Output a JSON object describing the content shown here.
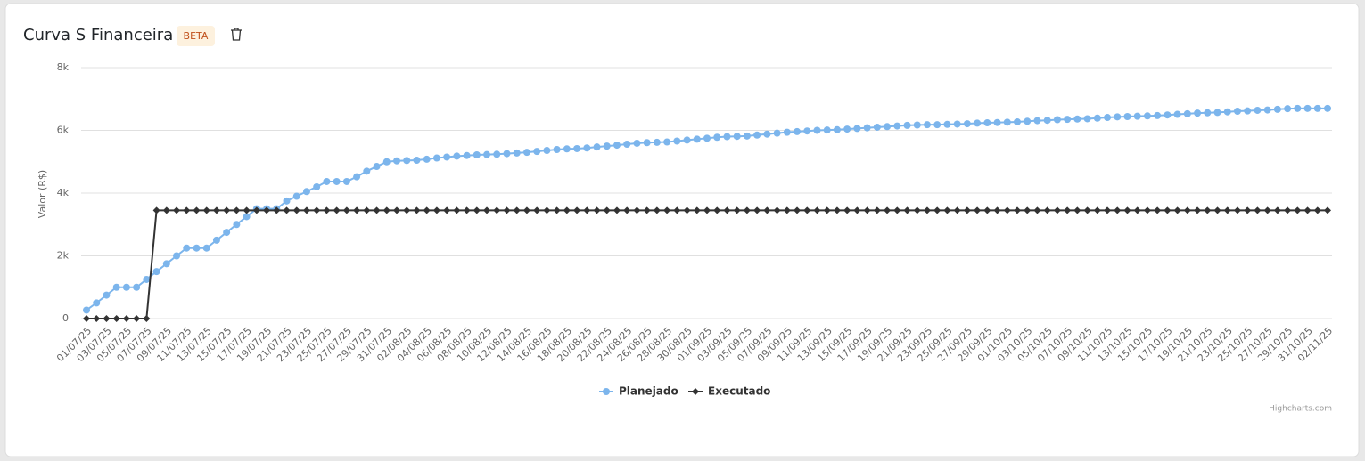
{
  "chart_data": {
    "type": "line",
    "title": "Curva S Financeira",
    "badge": "BETA",
    "credits": "Highcharts.com",
    "y_axis_label": "Valor (R$)",
    "ylim": [
      0,
      8000
    ],
    "yticks": [
      0,
      {
        "value": 2000,
        "label": "2k"
      },
      {
        "value": 4000,
        "label": "4k"
      },
      {
        "value": 6000,
        "label": "6k"
      },
      {
        "value": 8000,
        "label": "8k"
      }
    ],
    "grid": true,
    "legend": "bottom",
    "categories": [
      "01/07/25",
      null,
      "03/07/25",
      null,
      "05/07/25",
      null,
      "07/07/25",
      null,
      "09/07/25",
      null,
      "11/07/25",
      null,
      "13/07/25",
      null,
      "15/07/25",
      null,
      "17/07/25",
      null,
      "19/07/25",
      null,
      "21/07/25",
      null,
      "23/07/25",
      null,
      "25/07/25",
      null,
      "27/07/25",
      null,
      "29/07/25",
      null,
      "31/07/25",
      null,
      "02/08/25",
      null,
      "04/08/25",
      null,
      "06/08/25",
      null,
      "08/08/25",
      null,
      "10/08/25",
      null,
      "12/08/25",
      null,
      "14/08/25",
      null,
      "16/08/25",
      null,
      "18/08/25",
      null,
      "20/08/25",
      null,
      "22/08/25",
      null,
      "24/08/25",
      null,
      "26/08/25",
      null,
      "28/08/25",
      null,
      "30/08/25",
      null,
      "01/09/25",
      null,
      "03/09/25",
      null,
      "05/09/25",
      null,
      "07/09/25",
      null,
      "09/09/25",
      null,
      "11/09/25",
      null,
      "13/09/25",
      null,
      "15/09/25",
      null,
      "17/09/25",
      null,
      "19/09/25",
      null,
      "21/09/25",
      null,
      "23/09/25",
      null,
      "25/09/25",
      null,
      "27/09/25",
      null,
      "29/09/25",
      null,
      "01/10/25",
      null,
      "03/10/25",
      null,
      "05/10/25",
      null,
      "07/10/25",
      null,
      "09/10/25",
      null,
      "11/10/25",
      null,
      "13/10/25",
      null,
      "15/10/25",
      null,
      "17/10/25",
      null,
      "19/10/25",
      null,
      "21/10/25",
      null,
      "23/10/25",
      null,
      "25/10/25",
      null,
      "27/10/25",
      null,
      "29/10/25",
      null,
      "31/10/25",
      null,
      "02/11/25"
    ],
    "series": [
      {
        "name": "Planejado",
        "color": "#7cb5ec",
        "marker": "circle",
        "values": [
          270,
          500,
          750,
          1000,
          1000,
          1000,
          1250,
          1500,
          1750,
          2000,
          2250,
          2250,
          2250,
          2500,
          2750,
          3000,
          3250,
          3500,
          3500,
          3500,
          3750,
          3900,
          4050,
          4200,
          4370,
          4370,
          4370,
          4520,
          4700,
          4850,
          5000,
          5030,
          5040,
          5050,
          5080,
          5120,
          5150,
          5180,
          5200,
          5220,
          5230,
          5240,
          5260,
          5280,
          5300,
          5330,
          5360,
          5390,
          5410,
          5420,
          5440,
          5470,
          5500,
          5530,
          5560,
          5590,
          5610,
          5620,
          5630,
          5660,
          5690,
          5720,
          5750,
          5780,
          5800,
          5810,
          5820,
          5850,
          5880,
          5910,
          5940,
          5960,
          5980,
          6000,
          6010,
          6020,
          6040,
          6060,
          6080,
          6100,
          6120,
          6140,
          6160,
          6170,
          6180,
          6180,
          6190,
          6200,
          6210,
          6230,
          6240,
          6250,
          6260,
          6270,
          6290,
          6310,
          6320,
          6340,
          6350,
          6360,
          6370,
          6390,
          6410,
          6430,
          6440,
          6450,
          6460,
          6470,
          6490,
          6510,
          6530,
          6550,
          6560,
          6570,
          6590,
          6610,
          6620,
          6640,
          6650,
          6670,
          6690,
          6700,
          6700,
          6700,
          6700
        ]
      },
      {
        "name": "Executado",
        "color": "#333333",
        "marker": "diamond",
        "values": [
          0,
          0,
          0,
          0,
          0,
          0,
          0,
          3450,
          3450,
          3450,
          3450,
          3450,
          3450,
          3450,
          3450,
          3450,
          3450,
          3450,
          3450,
          3450,
          3450,
          3450,
          3450,
          3450,
          3450,
          3450,
          3450,
          3450,
          3450,
          3450,
          3450,
          3450,
          3450,
          3450,
          3450,
          3450,
          3450,
          3450,
          3450,
          3450,
          3450,
          3450,
          3450,
          3450,
          3450,
          3450,
          3450,
          3450,
          3450,
          3450,
          3450,
          3450,
          3450,
          3450,
          3450,
          3450,
          3450,
          3450,
          3450,
          3450,
          3450,
          3450,
          3450,
          3450,
          3450,
          3450,
          3450,
          3450,
          3450,
          3450,
          3450,
          3450,
          3450,
          3450,
          3450,
          3450,
          3450,
          3450,
          3450,
          3450,
          3450,
          3450,
          3450,
          3450,
          3450,
          3450,
          3450,
          3450,
          3450,
          3450,
          3450,
          3450,
          3450,
          3450,
          3450,
          3450,
          3450,
          3450,
          3450,
          3450,
          3450,
          3450,
          3450,
          3450,
          3450,
          3450,
          3450,
          3450,
          3450,
          3450,
          3450,
          3450,
          3450,
          3450,
          3450,
          3450,
          3450,
          3450,
          3450,
          3450,
          3450,
          3450,
          3450,
          3450,
          3450
        ]
      }
    ]
  }
}
